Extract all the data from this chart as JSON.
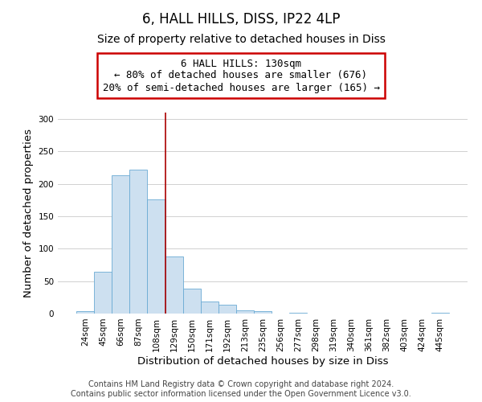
{
  "title": "6, HALL HILLS, DISS, IP22 4LP",
  "subtitle": "Size of property relative to detached houses in Diss",
  "xlabel": "Distribution of detached houses by size in Diss",
  "ylabel": "Number of detached properties",
  "bar_labels": [
    "24sqm",
    "45sqm",
    "66sqm",
    "87sqm",
    "108sqm",
    "129sqm",
    "150sqm",
    "171sqm",
    "192sqm",
    "213sqm",
    "235sqm",
    "256sqm",
    "277sqm",
    "298sqm",
    "319sqm",
    "340sqm",
    "361sqm",
    "382sqm",
    "403sqm",
    "424sqm",
    "445sqm"
  ],
  "bar_values": [
    4,
    65,
    213,
    222,
    176,
    88,
    39,
    19,
    14,
    5,
    4,
    0,
    1,
    0,
    0,
    0,
    0,
    0,
    0,
    0,
    1
  ],
  "bar_color": "#cde0f0",
  "bar_edge_color": "#6aaad4",
  "vline_index": 5,
  "vline_color": "#aa0000",
  "annotation_box_text": "6 HALL HILLS: 130sqm\n← 80% of detached houses are smaller (676)\n20% of semi-detached houses are larger (165) →",
  "annotation_box_edge_color": "#cc0000",
  "ylim": [
    0,
    310
  ],
  "yticks": [
    0,
    50,
    100,
    150,
    200,
    250,
    300
  ],
  "footer_line1": "Contains HM Land Registry data © Crown copyright and database right 2024.",
  "footer_line2": "Contains public sector information licensed under the Open Government Licence v3.0.",
  "background_color": "#ffffff",
  "grid_color": "#d0d0d0",
  "title_fontsize": 12,
  "subtitle_fontsize": 10,
  "axis_label_fontsize": 9.5,
  "tick_fontsize": 7.5,
  "annotation_fontsize": 9,
  "footer_fontsize": 7
}
